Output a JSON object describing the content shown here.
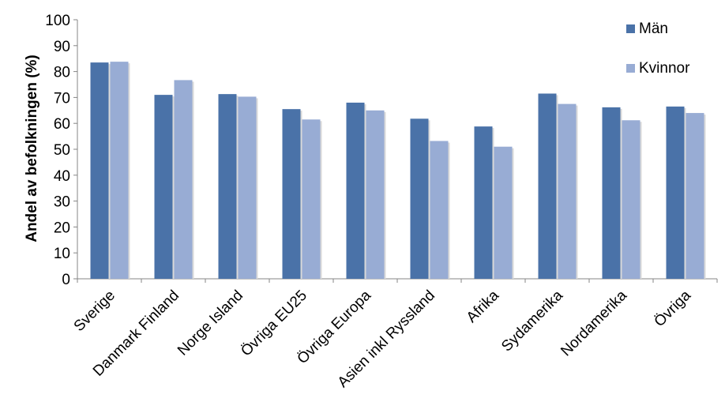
{
  "chart_data": {
    "type": "bar",
    "title": "",
    "xlabel": "",
    "ylabel": "Andel av befolkningen (%)",
    "ylim": [
      0,
      100
    ],
    "yticks": [
      0,
      10,
      20,
      30,
      40,
      50,
      60,
      70,
      80,
      90,
      100
    ],
    "grid": false,
    "legend_position": "top-right",
    "categories": [
      "Sverige",
      "Danmark Finland",
      "Norge Island",
      "Övriga EU25",
      "Övriga Europa",
      "Asien inkl Ryssland",
      "Afrika",
      "Sydamerika",
      "Nordamerika",
      "Övriga"
    ],
    "series": [
      {
        "name": "Män",
        "color": "#4a72a8",
        "values": [
          83.5,
          71,
          71.3,
          65.5,
          68,
          61.8,
          58.8,
          71.5,
          66.2,
          66.5
        ]
      },
      {
        "name": "Kvinnor",
        "color": "#98acd4",
        "values": [
          83.8,
          76.7,
          70.3,
          61.5,
          65,
          53.2,
          51,
          67.5,
          61.2,
          64
        ]
      }
    ]
  }
}
